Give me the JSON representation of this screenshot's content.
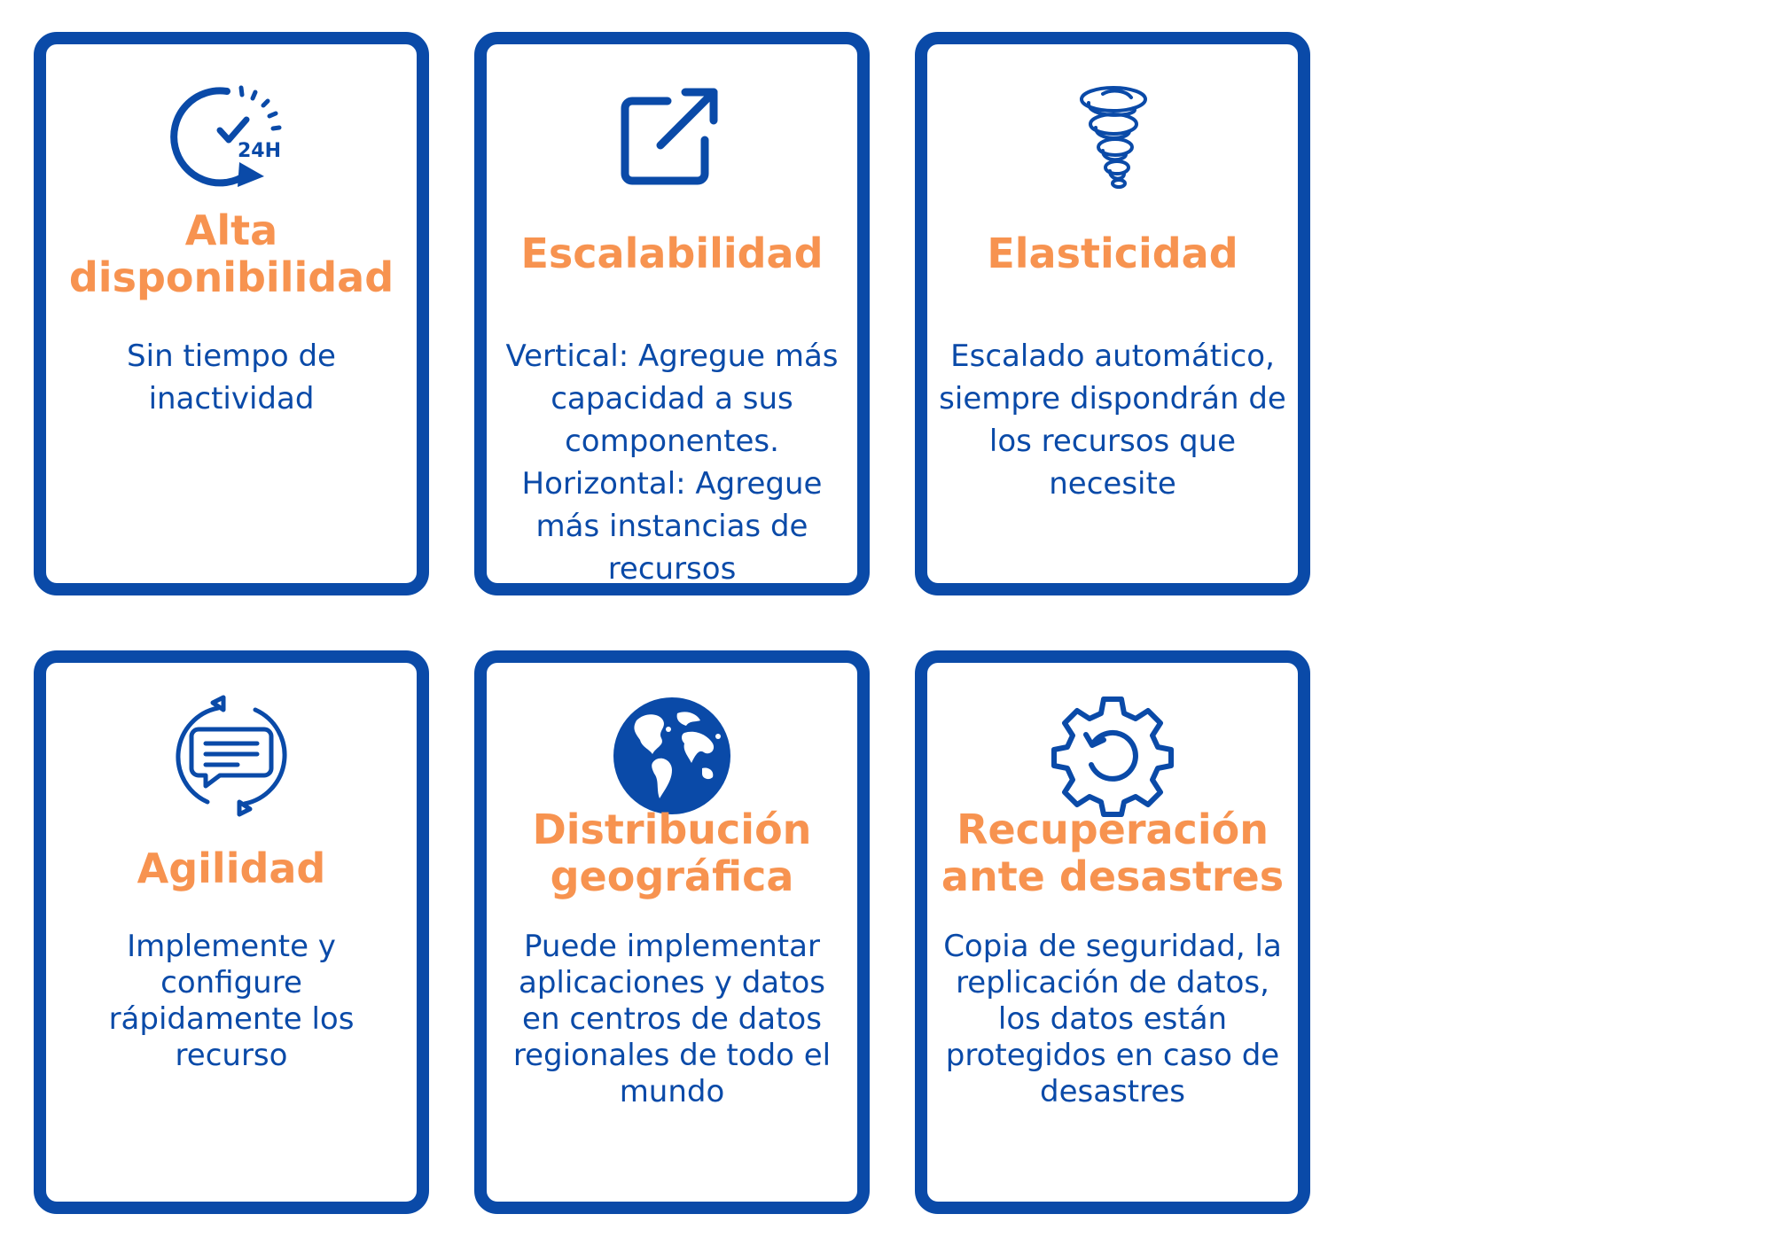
{
  "colors": {
    "border": "#0A4AA8",
    "title": "#F79350",
    "text": "#0A4AA8"
  },
  "cards": [
    {
      "icon": "clock-24h-icon",
      "title": "Alta\ndisponibilidad",
      "desc": "Sin tiempo de\ninactividad"
    },
    {
      "icon": "external-link-icon",
      "title": "Escalabilidad",
      "desc": "Vertical: Agregue más\ncapacidad a sus\ncomponentes.\nHorizontal: Agregue\nmás instancias de\nrecursos"
    },
    {
      "icon": "tornado-icon",
      "title": "Elasticidad",
      "desc": "Escalado automático,\nsiempre dispondrán de\nlos recursos que\nnecesite"
    },
    {
      "icon": "chat-refresh-icon",
      "title": "Agilidad",
      "desc": "Implemente y\nconfigure\nrápidamente los\nrecurso"
    },
    {
      "icon": "globe-icon",
      "title": "Distribución\ngeográfica",
      "desc": "Puede implementar\naplicaciones y datos\nen centros de datos\nregionales de todo el\nmundo"
    },
    {
      "icon": "gear-refresh-icon",
      "title": "Recuperación\nante desastres",
      "desc": "Copia de seguridad, la\nreplicación de datos,\nlos datos están\nprotegidos en caso de\ndesastres"
    }
  ]
}
